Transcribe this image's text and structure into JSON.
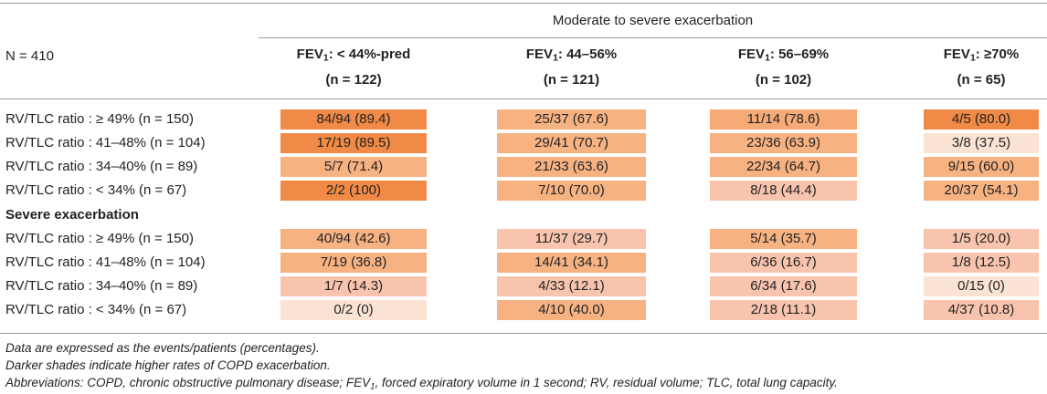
{
  "table": {
    "spanning_header": "Moderate to severe exacerbation",
    "n_label": "N = 410",
    "columns": [
      {
        "fev_prefix": "FEV",
        "fev_sub": "1",
        "range": ": < 44%-pred",
        "n": "(n = 122)"
      },
      {
        "fev_prefix": "FEV",
        "fev_sub": "1",
        "range": ": 44–56%",
        "n": "(n = 121)"
      },
      {
        "fev_prefix": "FEV",
        "fev_sub": "1",
        "range": ": 56–69%",
        "n": "(n = 102)"
      },
      {
        "fev_prefix": "FEV",
        "fev_sub": "1",
        "range": ": ≥70%",
        "n": "(n = 65)"
      }
    ],
    "section_moderate": {
      "rows": [
        {
          "label": "RV/TLC ratio : ≥ 49% (n = 150)",
          "cells": [
            {
              "text": "84/94 (89.4)",
              "color": "#f08a46"
            },
            {
              "text": "25/37 (67.6)",
              "color": "#f7b282"
            },
            {
              "text": "11/14 (78.6)",
              "color": "#f6aa76"
            },
            {
              "text": "4/5 (80.0)",
              "color": "#f08a46"
            }
          ]
        },
        {
          "label": "RV/TLC ratio : 41–48% (n = 104)",
          "cells": [
            {
              "text": "17/19 (89.5)",
              "color": "#f08a46"
            },
            {
              "text": "29/41 (70.7)",
              "color": "#f7b282"
            },
            {
              "text": "23/36 (63.9)",
              "color": "#f7b282"
            },
            {
              "text": "3/8 (37.5)",
              "color": "#fbe3d4"
            }
          ]
        },
        {
          "label": "RV/TLC ratio : 34–40% (n = 89)",
          "cells": [
            {
              "text": "5/7 (71.4)",
              "color": "#f7b282"
            },
            {
              "text": "21/33 (63.6)",
              "color": "#f7b282"
            },
            {
              "text": "22/34 (64.7)",
              "color": "#f7b282"
            },
            {
              "text": "9/15 (60.0)",
              "color": "#f7b282"
            }
          ]
        },
        {
          "label": "RV/TLC ratio : < 34% (n = 67)",
          "cells": [
            {
              "text": "2/2 (100)",
              "color": "#f08a46"
            },
            {
              "text": "7/10 (70.0)",
              "color": "#f7b282"
            },
            {
              "text": "8/18 (44.4)",
              "color": "#f9c4ae"
            },
            {
              "text": "20/37 (54.1)",
              "color": "#f7b282"
            }
          ]
        }
      ]
    },
    "section_severe": {
      "title": "Severe exacerbation",
      "rows": [
        {
          "label": "RV/TLC ratio : ≥ 49% (n = 150)",
          "cells": [
            {
              "text": "40/94 (42.6)",
              "color": "#f7b282"
            },
            {
              "text": "11/37 (29.7)",
              "color": "#f9c4ae"
            },
            {
              "text": "5/14 (35.7)",
              "color": "#f7b282"
            },
            {
              "text": "1/5 (20.0)",
              "color": "#f9c4ae"
            }
          ]
        },
        {
          "label": "RV/TLC ratio : 41–48% (n = 104)",
          "cells": [
            {
              "text": "7/19 (36.8)",
              "color": "#f7b282"
            },
            {
              "text": "14/41 (34.1)",
              "color": "#f7b282"
            },
            {
              "text": "6/36 (16.7)",
              "color": "#f9c4ae"
            },
            {
              "text": "1/8 (12.5)",
              "color": "#f9c4ae"
            }
          ]
        },
        {
          "label": "RV/TLC ratio : 34–40% (n = 89)",
          "cells": [
            {
              "text": "1/7 (14.3)",
              "color": "#f9c4ae"
            },
            {
              "text": "4/33 (12.1)",
              "color": "#f9c4ae"
            },
            {
              "text": "6/34 (17.6)",
              "color": "#f9c4ae"
            },
            {
              "text": "0/15 (0)",
              "color": "#fbe3d4"
            }
          ]
        },
        {
          "label": "RV/TLC ratio : < 34% (n = 67)",
          "cells": [
            {
              "text": "0/2 (0)",
              "color": "#fbe3d4"
            },
            {
              "text": "4/10 (40.0)",
              "color": "#f7b282"
            },
            {
              "text": "2/18 (11.1)",
              "color": "#f9c4ae"
            },
            {
              "text": "4/37 (10.8)",
              "color": "#f9c4ae"
            }
          ]
        }
      ]
    }
  },
  "footnotes": {
    "line1": "Data are expressed as the events/patients (percentages).",
    "line2": "Darker shades indicate higher rates of COPD exacerbation.",
    "line3_a": "Abbreviations: COPD, chronic obstructive pulmonary disease; FEV",
    "line3_sub": "1",
    "line3_b": ", forced expiratory volume in 1 second; RV, residual volume; TLC, total lung capacity."
  }
}
